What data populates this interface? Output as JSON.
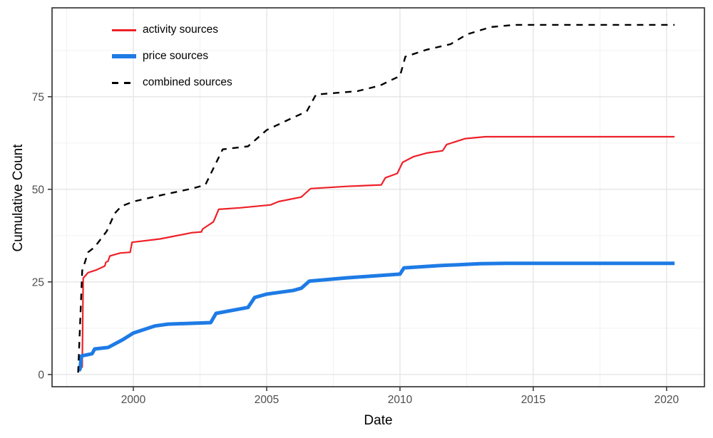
{
  "chart_data": {
    "type": "line",
    "title": "",
    "xlabel": "Date",
    "ylabel": "Cumulative Count",
    "x_domain": [
      1996.95,
      2021.42
    ],
    "y_domain": [
      -3.3,
      99.0
    ],
    "x_ticks": [
      2000,
      2005,
      2010,
      2015,
      2020
    ],
    "x_tick_labels": [
      "2000",
      "2005",
      "2010",
      "2015",
      "2020"
    ],
    "x_minor_ticks": [
      1997.5,
      2002.5,
      2007.5,
      2012.5,
      2017.5
    ],
    "y_ticks": [
      0,
      25,
      50,
      75
    ],
    "y_tick_labels": [
      "0",
      "25",
      "50",
      "75"
    ],
    "y_minor_ticks": [
      12.5,
      37.5,
      62.5,
      87.5
    ],
    "grid": true,
    "legend": {
      "position": "top-left-inside",
      "items": [
        "activity sources",
        "price sources",
        "combined sources"
      ]
    },
    "panel_border_color": "#2b2b2b",
    "major_grid_color": "#e4e4e4",
    "minor_grid_color": "#f0f0f0",
    "tick_label_color": "#4d4d4d",
    "series": [
      {
        "name": "activity sources",
        "color": "#ee2128",
        "style": "solid",
        "stroke_width": 2.2,
        "points": [
          [
            1997.95,
            2
          ],
          [
            1998.08,
            2
          ],
          [
            1998.12,
            26
          ],
          [
            1998.3,
            27.5
          ],
          [
            1998.6,
            28.2
          ],
          [
            1998.93,
            29.3
          ],
          [
            1998.97,
            30.3
          ],
          [
            1999.05,
            30.6
          ],
          [
            1999.12,
            32
          ],
          [
            1999.5,
            32.8
          ],
          [
            1999.88,
            33
          ],
          [
            1999.95,
            35.7
          ],
          [
            2001.0,
            36.6
          ],
          [
            2002.2,
            38.3
          ],
          [
            2002.55,
            38.5
          ],
          [
            2002.6,
            39.3
          ],
          [
            2003.0,
            41.2
          ],
          [
            2003.05,
            42
          ],
          [
            2003.2,
            44.6
          ],
          [
            2004.0,
            45.0
          ],
          [
            2005.15,
            45.8
          ],
          [
            2005.45,
            46.7
          ],
          [
            2006.3,
            47.9
          ],
          [
            2006.45,
            48.9
          ],
          [
            2006.65,
            50.2
          ],
          [
            2008.0,
            50.8
          ],
          [
            2009.3,
            51.2
          ],
          [
            2009.45,
            53.1
          ],
          [
            2009.9,
            54.3
          ],
          [
            2010.1,
            57.3
          ],
          [
            2010.5,
            58.8
          ],
          [
            2011.0,
            59.8
          ],
          [
            2011.6,
            60.4
          ],
          [
            2011.75,
            62.1
          ],
          [
            2012.45,
            63.7
          ],
          [
            2013.2,
            64.2
          ],
          [
            2020.3,
            64.2
          ]
        ]
      },
      {
        "name": "price sources",
        "color": "#1e7be5",
        "style": "solid",
        "stroke_width": 5,
        "points": [
          [
            1997.95,
            1
          ],
          [
            1998.0,
            1.5
          ],
          [
            1998.05,
            5
          ],
          [
            1998.45,
            5.6
          ],
          [
            1998.55,
            6.9
          ],
          [
            1999.05,
            7.3
          ],
          [
            1999.6,
            9.4
          ],
          [
            2000.0,
            11.2
          ],
          [
            2000.8,
            13.1
          ],
          [
            2001.3,
            13.6
          ],
          [
            2002.9,
            14.0
          ],
          [
            2003.1,
            16.5
          ],
          [
            2004.3,
            18.1
          ],
          [
            2004.55,
            20.8
          ],
          [
            2005.0,
            21.7
          ],
          [
            2006.0,
            22.7
          ],
          [
            2006.3,
            23.3
          ],
          [
            2006.6,
            25.2
          ],
          [
            2008.0,
            26.1
          ],
          [
            2009.0,
            26.6
          ],
          [
            2010.0,
            27.1
          ],
          [
            2010.15,
            28.8
          ],
          [
            2011.5,
            29.4
          ],
          [
            2013.0,
            29.9
          ],
          [
            2014.0,
            30
          ],
          [
            2020.3,
            30
          ]
        ]
      },
      {
        "name": "combined sources",
        "color": "#000000",
        "style": "dashed",
        "stroke_width": 2.4,
        "points": [
          [
            1997.93,
            0.5
          ],
          [
            1998.08,
            28
          ],
          [
            1998.3,
            33
          ],
          [
            1998.55,
            34.4
          ],
          [
            1999.0,
            38.7
          ],
          [
            1999.3,
            43.5
          ],
          [
            1999.55,
            45.4
          ],
          [
            2000.0,
            46.7
          ],
          [
            2001.1,
            48.5
          ],
          [
            2002.2,
            50.2
          ],
          [
            2002.7,
            51.2
          ],
          [
            2003.35,
            60.8
          ],
          [
            2004.3,
            61.6
          ],
          [
            2005.0,
            66
          ],
          [
            2006.0,
            69.4
          ],
          [
            2006.5,
            71
          ],
          [
            2006.85,
            75.6
          ],
          [
            2008.4,
            76.5
          ],
          [
            2009.25,
            78
          ],
          [
            2009.7,
            79.6
          ],
          [
            2010.0,
            80.6
          ],
          [
            2010.2,
            85.8
          ],
          [
            2011.0,
            87.7
          ],
          [
            2011.9,
            89.2
          ],
          [
            2012.5,
            91.8
          ],
          [
            2013.4,
            93.8
          ],
          [
            2014.3,
            94.4
          ],
          [
            2020.3,
            94.4
          ]
        ]
      }
    ]
  }
}
